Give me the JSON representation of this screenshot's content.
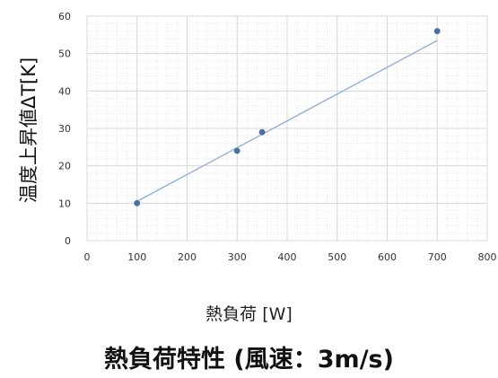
{
  "chart_data": {
    "type": "scatter",
    "xlabel": "熱負荷 [W]",
    "ylabel": "温度上昇値ΔT[K]",
    "xlim": [
      0,
      800
    ],
    "ylim": [
      0,
      60
    ],
    "xticks": [
      "0",
      "100",
      "200",
      "300",
      "400",
      "500",
      "600",
      "700",
      "800"
    ],
    "yticks": [
      "0",
      "10",
      "20",
      "30",
      "40",
      "50",
      "60"
    ],
    "grid": true,
    "series": [
      {
        "points": [
          {
            "x": 100,
            "y": 10
          },
          {
            "x": 300,
            "y": 24
          },
          {
            "x": 350,
            "y": 29
          },
          {
            "x": 700,
            "y": 56
          }
        ]
      }
    ],
    "trendline": {
      "x": [
        100,
        700
      ],
      "y": [
        10.5,
        53.5
      ]
    },
    "colors": {
      "marker": "#4a6fa5",
      "trendline": "#8fb0d8",
      "grid": "#d8d8d8",
      "plot_background": "#ffffff"
    }
  },
  "caption": "熱負荷特性 (風速：3m/s)"
}
